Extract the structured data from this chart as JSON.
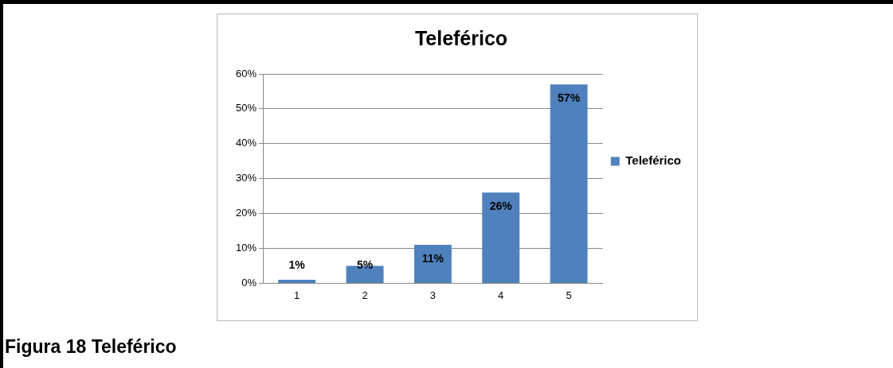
{
  "chart_data": {
    "type": "bar",
    "title": "Teleférico",
    "categories": [
      "1",
      "2",
      "3",
      "4",
      "5"
    ],
    "series": [
      {
        "name": "Teleférico",
        "color": "#4f81bd",
        "values": [
          1,
          5,
          11,
          26,
          57
        ],
        "value_labels": [
          "1%",
          "5%",
          "11%",
          "26%",
          "57%"
        ]
      }
    ],
    "ylim": [
      0,
      60
    ],
    "yticks": [
      {
        "value": 0,
        "label": "0%"
      },
      {
        "value": 10,
        "label": "10%"
      },
      {
        "value": 20,
        "label": "20%"
      },
      {
        "value": 30,
        "label": "30%"
      },
      {
        "value": 40,
        "label": "40%"
      },
      {
        "value": 50,
        "label": "50%"
      },
      {
        "value": 60,
        "label": "60%"
      }
    ],
    "grid": "y",
    "legend": "right",
    "annotations": [
      "Figura 18 Teleférico"
    ]
  }
}
